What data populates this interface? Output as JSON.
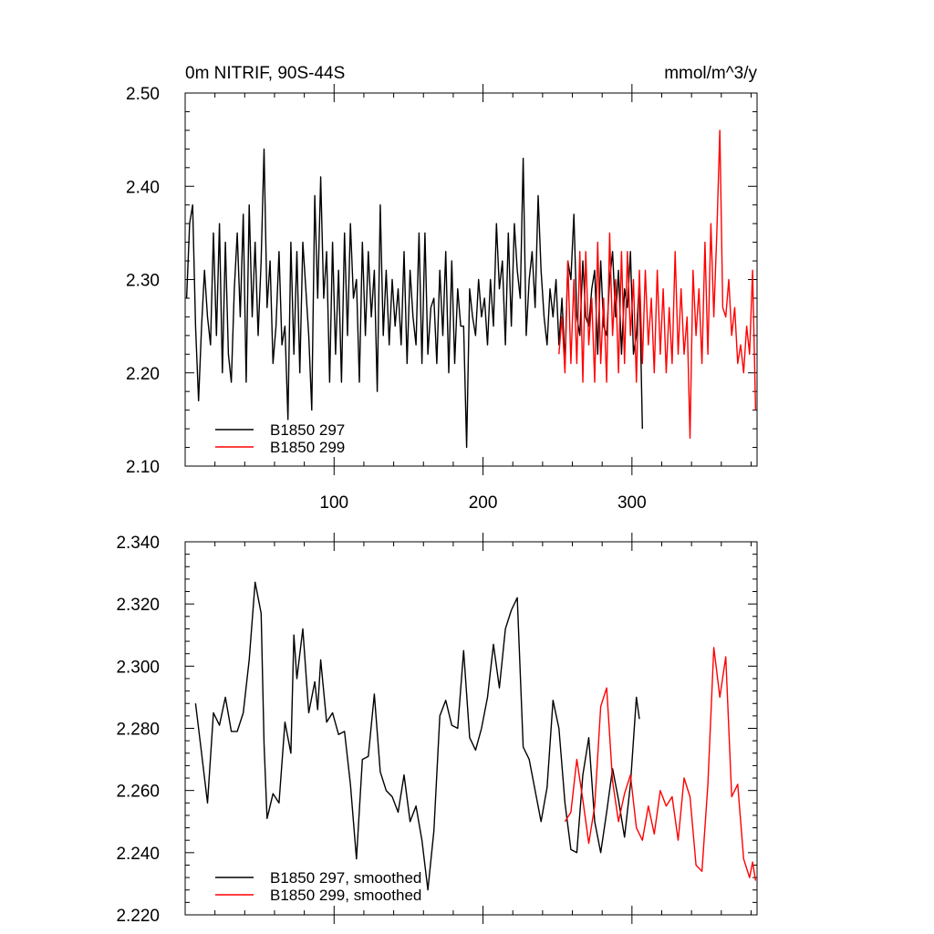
{
  "chart_data": [
    {
      "type": "line",
      "title": "0m NITRIF, 90S-44S",
      "units": "mmol/m^3/y",
      "xlim": [
        0,
        384
      ],
      "ylim": [
        2.1,
        2.5
      ],
      "xticks": [
        100,
        200,
        300
      ],
      "xtick_labels": [
        "100",
        "200",
        "300"
      ],
      "yticks": [
        2.1,
        2.2,
        2.3,
        2.4,
        2.5
      ],
      "ytick_labels": [
        "2.10",
        "2.20",
        "2.30",
        "2.40",
        "2.50"
      ],
      "legend_position": "bottom-left",
      "series": [
        {
          "name": "B1850 297",
          "color": "#000000",
          "x": [
            1,
            3,
            5,
            7,
            9,
            11,
            13,
            15,
            17,
            19,
            21,
            23,
            25,
            27,
            29,
            31,
            33,
            35,
            37,
            39,
            41,
            43,
            45,
            47,
            49,
            51,
            53,
            55,
            57,
            59,
            61,
            63,
            65,
            67,
            69,
            71,
            73,
            75,
            77,
            79,
            81,
            83,
            85,
            87,
            89,
            91,
            93,
            95,
            97,
            99,
            101,
            103,
            105,
            107,
            109,
            111,
            113,
            115,
            117,
            119,
            121,
            123,
            125,
            127,
            129,
            131,
            133,
            135,
            137,
            139,
            141,
            143,
            145,
            147,
            149,
            151,
            153,
            155,
            157,
            159,
            161,
            163,
            165,
            167,
            169,
            171,
            173,
            175,
            177,
            179,
            181,
            183,
            185,
            187,
            189,
            191,
            193,
            195,
            197,
            199,
            201,
            203,
            205,
            207,
            209,
            211,
            213,
            215,
            217,
            219,
            221,
            223,
            225,
            227,
            229,
            231,
            233,
            235,
            237,
            239,
            241,
            243,
            245,
            247,
            249,
            251,
            253,
            255,
            257,
            259,
            261,
            263,
            265,
            267,
            269,
            271,
            273,
            275,
            277,
            279,
            281,
            283,
            285,
            287,
            289,
            291,
            293,
            295,
            297,
            299,
            301,
            303,
            305,
            307
          ],
          "y": [
            2.28,
            2.36,
            2.38,
            2.25,
            2.17,
            2.25,
            2.31,
            2.26,
            2.23,
            2.35,
            2.24,
            2.36,
            2.2,
            2.34,
            2.22,
            2.19,
            2.29,
            2.35,
            2.26,
            2.37,
            2.19,
            2.38,
            2.26,
            2.34,
            2.24,
            2.32,
            2.44,
            2.27,
            2.32,
            2.21,
            2.25,
            2.33,
            2.23,
            2.25,
            2.15,
            2.34,
            2.22,
            2.33,
            2.2,
            2.34,
            2.29,
            2.24,
            2.16,
            2.39,
            2.28,
            2.41,
            2.28,
            2.33,
            2.19,
            2.34,
            2.22,
            2.31,
            2.19,
            2.35,
            2.24,
            2.36,
            2.28,
            2.3,
            2.19,
            2.34,
            2.24,
            2.33,
            2.26,
            2.31,
            2.18,
            2.38,
            2.24,
            2.31,
            2.23,
            2.3,
            2.25,
            2.29,
            2.23,
            2.33,
            2.21,
            2.31,
            2.26,
            2.23,
            2.35,
            2.21,
            2.35,
            2.22,
            2.27,
            2.28,
            2.21,
            2.31,
            2.24,
            2.33,
            2.2,
            2.32,
            2.21,
            2.29,
            2.25,
            2.25,
            2.12,
            2.29,
            2.26,
            2.24,
            2.3,
            2.26,
            2.28,
            2.23,
            2.3,
            2.25,
            2.36,
            2.29,
            2.32,
            2.23,
            2.35,
            2.25,
            2.36,
            2.31,
            2.28,
            2.43,
            2.24,
            2.3,
            2.33,
            2.27,
            2.39,
            2.31,
            2.26,
            2.23,
            2.29,
            2.26,
            2.3,
            2.23,
            2.28,
            2.21,
            2.32,
            2.3,
            2.37,
            2.26,
            2.24,
            2.32,
            2.26,
            2.25,
            2.29,
            2.31,
            2.22,
            2.32,
            2.25,
            2.24,
            2.3,
            2.33,
            2.26,
            2.31,
            2.22,
            2.29,
            2.27,
            2.33,
            2.22,
            2.24,
            2.3,
            2.14
          ]
        },
        {
          "name": "B1850 299",
          "color": "#ff0000",
          "x": [
            251,
            253,
            255,
            257,
            259,
            261,
            263,
            265,
            267,
            269,
            271,
            273,
            275,
            277,
            279,
            281,
            283,
            285,
            287,
            289,
            291,
            293,
            295,
            297,
            299,
            301,
            303,
            305,
            307,
            309,
            311,
            313,
            315,
            317,
            319,
            321,
            323,
            325,
            327,
            329,
            331,
            333,
            335,
            337,
            339,
            341,
            343,
            345,
            347,
            349,
            351,
            353,
            355,
            357,
            359,
            361,
            363,
            365,
            367,
            369,
            371,
            373,
            375,
            377,
            379,
            381,
            383
          ],
          "y": [
            2.22,
            2.26,
            2.2,
            2.32,
            2.21,
            2.3,
            2.21,
            2.33,
            2.19,
            2.33,
            2.23,
            2.28,
            2.19,
            2.34,
            2.21,
            2.28,
            2.19,
            2.35,
            2.24,
            2.3,
            2.2,
            2.33,
            2.21,
            2.33,
            2.24,
            2.3,
            2.19,
            2.31,
            2.21,
            2.31,
            2.23,
            2.28,
            2.2,
            2.31,
            2.22,
            2.29,
            2.2,
            2.27,
            2.21,
            2.33,
            2.22,
            2.29,
            2.22,
            2.26,
            2.13,
            2.31,
            2.24,
            2.29,
            2.21,
            2.34,
            2.22,
            2.36,
            2.26,
            2.35,
            2.46,
            2.27,
            2.26,
            2.3,
            2.24,
            2.27,
            2.21,
            2.23,
            2.2,
            2.25,
            2.22,
            2.31,
            2.16
          ]
        }
      ]
    },
    {
      "type": "line",
      "title": "",
      "xlim": [
        0,
        384
      ],
      "ylim": [
        2.22,
        2.34
      ],
      "xticks": [
        100,
        200,
        300
      ],
      "xtick_labels": [],
      "yticks": [
        2.22,
        2.24,
        2.26,
        2.28,
        2.3,
        2.32,
        2.34
      ],
      "ytick_labels": [
        "2.220",
        "2.240",
        "2.260",
        "2.280",
        "2.300",
        "2.320",
        "2.340"
      ],
      "legend_position": "bottom-left",
      "series": [
        {
          "name": "B1850 297, smoothed",
          "color": "#000000",
          "x": [
            7,
            11,
            15,
            19,
            23,
            27,
            31,
            35,
            39,
            43,
            47,
            51,
            53,
            55,
            57,
            59,
            63,
            67,
            71,
            73,
            75,
            79,
            83,
            87,
            89,
            91,
            95,
            99,
            103,
            107,
            111,
            115,
            119,
            123,
            127,
            131,
            135,
            139,
            143,
            147,
            151,
            155,
            159,
            163,
            167,
            171,
            175,
            179,
            183,
            187,
            191,
            195,
            199,
            203,
            207,
            211,
            215,
            219,
            223,
            227,
            231,
            235,
            239,
            243,
            247,
            251,
            255,
            259,
            263,
            267,
            271,
            275,
            279,
            283,
            287,
            291,
            295,
            299,
            303,
            305
          ],
          "y": [
            2.288,
            2.272,
            2.256,
            2.285,
            2.281,
            2.29,
            2.279,
            2.279,
            2.285,
            2.302,
            2.327,
            2.317,
            2.275,
            2.251,
            2.255,
            2.259,
            2.256,
            2.282,
            2.272,
            2.31,
            2.296,
            2.312,
            2.285,
            2.295,
            2.286,
            2.302,
            2.282,
            2.285,
            2.278,
            2.279,
            2.262,
            2.238,
            2.27,
            2.271,
            2.291,
            2.266,
            2.26,
            2.258,
            2.253,
            2.265,
            2.25,
            2.255,
            2.244,
            2.228,
            2.247,
            2.284,
            2.289,
            2.281,
            2.28,
            2.305,
            2.277,
            2.273,
            2.28,
            2.29,
            2.307,
            2.293,
            2.312,
            2.318,
            2.322,
            2.274,
            2.27,
            2.26,
            2.25,
            2.261,
            2.289,
            2.28,
            2.256,
            2.241,
            2.24,
            2.265,
            2.277,
            2.25,
            2.24,
            2.253,
            2.267,
            2.257,
            2.245,
            2.262,
            2.29,
            2.283
          ]
        },
        {
          "name": "B1850 299, smoothed",
          "color": "#ff0000",
          "x": [
            255,
            259,
            263,
            267,
            271,
            275,
            279,
            283,
            287,
            291,
            295,
            299,
            303,
            307,
            311,
            315,
            319,
            323,
            327,
            331,
            335,
            339,
            343,
            347,
            351,
            355,
            359,
            363,
            367,
            371,
            375,
            379,
            381,
            383
          ],
          "y": [
            2.25,
            2.253,
            2.27,
            2.257,
            2.243,
            2.255,
            2.287,
            2.293,
            2.263,
            2.25,
            2.259,
            2.265,
            2.248,
            2.244,
            2.255,
            2.246,
            2.26,
            2.255,
            2.258,
            2.244,
            2.264,
            2.258,
            2.236,
            2.234,
            2.262,
            2.306,
            2.29,
            2.303,
            2.258,
            2.262,
            2.238,
            2.232,
            2.237,
            2.231
          ]
        }
      ]
    }
  ]
}
